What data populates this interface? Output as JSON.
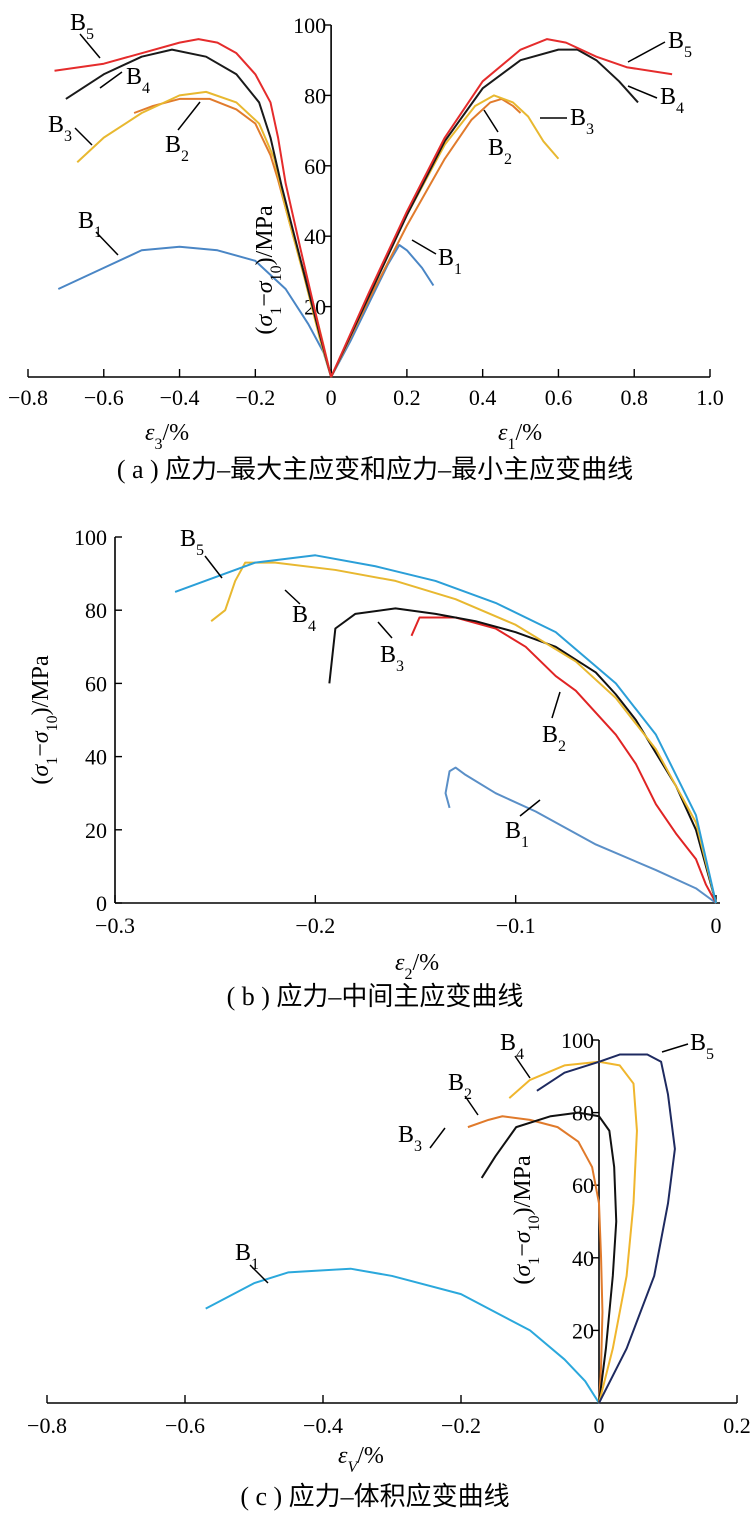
{
  "chart_data": [
    {
      "panel": "a",
      "type": "line",
      "caption": "( a ) 应力–最大主应变和应力–最小主应变曲线",
      "xlim": [
        -0.8,
        1.0
      ],
      "ylim": [
        0,
        100
      ],
      "xticks": [
        -0.8,
        -0.6,
        -0.4,
        -0.2,
        0,
        0.2,
        0.4,
        0.6,
        0.8,
        1.0
      ],
      "xtick_labels": [
        "−0.8",
        "−0.6",
        "−0.4",
        "−0.2",
        "0",
        "0.2",
        "0.4",
        "0.6",
        "0.8",
        "1.0"
      ],
      "yticks": [
        20,
        40,
        60,
        80,
        100
      ],
      "ytick_labels": [
        "20",
        "40",
        "60",
        "80",
        "100"
      ],
      "ylabel": "(σ1−σ10)/MPa",
      "xlabel_left": "ε3/%",
      "xlabel_right": "ε1/%",
      "series": [
        {
          "name": "B1",
          "color": "#4a86c5",
          "eps3": [
            [
              0,
              0
            ],
            [
              -0.02,
              7
            ],
            [
              -0.06,
              15
            ],
            [
              -0.12,
              25
            ],
            [
              -0.2,
              33
            ],
            [
              -0.3,
              36
            ],
            [
              -0.4,
              37
            ],
            [
              -0.5,
              36
            ],
            [
              -0.6,
              31
            ],
            [
              -0.72,
              25
            ]
          ],
          "eps1": [
            [
              0,
              0
            ],
            [
              0.05,
              10
            ],
            [
              0.1,
              21
            ],
            [
              0.15,
              32
            ],
            [
              0.18,
              37.5
            ],
            [
              0.2,
              36
            ],
            [
              0.24,
              31
            ],
            [
              0.27,
              26
            ]
          ]
        },
        {
          "name": "B2",
          "color": "#e17b2c",
          "eps3": [
            [
              0,
              0
            ],
            [
              -0.02,
              9
            ],
            [
              -0.05,
              22
            ],
            [
              -0.1,
              40
            ],
            [
              -0.14,
              56
            ],
            [
              -0.16,
              63
            ],
            [
              -0.2,
              72
            ],
            [
              -0.25,
              76
            ],
            [
              -0.32,
              79
            ],
            [
              -0.4,
              79
            ],
            [
              -0.47,
              77
            ],
            [
              -0.52,
              75
            ]
          ],
          "eps1": [
            [
              0,
              0
            ],
            [
              0.1,
              22
            ],
            [
              0.2,
              43
            ],
            [
              0.3,
              62
            ],
            [
              0.37,
              73
            ],
            [
              0.42,
              78
            ],
            [
              0.45,
              79
            ],
            [
              0.48,
              77
            ],
            [
              0.5,
              75
            ]
          ]
        },
        {
          "name": "B3",
          "color": "#e8b830",
          "eps3": [
            [
              0,
              0
            ],
            [
              -0.03,
              11
            ],
            [
              -0.07,
              28
            ],
            [
              -0.12,
              48
            ],
            [
              -0.15,
              62
            ],
            [
              -0.19,
              72
            ],
            [
              -0.25,
              78
            ],
            [
              -0.33,
              81
            ],
            [
              -0.4,
              80
            ],
            [
              -0.5,
              75
            ],
            [
              -0.6,
              68
            ],
            [
              -0.67,
              61
            ]
          ],
          "eps1": [
            [
              0,
              0
            ],
            [
              0.1,
              23
            ],
            [
              0.2,
              46
            ],
            [
              0.3,
              66
            ],
            [
              0.38,
              77
            ],
            [
              0.43,
              80
            ],
            [
              0.48,
              78
            ],
            [
              0.52,
              74
            ],
            [
              0.56,
              67
            ],
            [
              0.6,
              62
            ]
          ]
        },
        {
          "name": "B4",
          "color": "#1a1a1a",
          "eps3": [
            [
              0,
              0
            ],
            [
              -0.03,
              12
            ],
            [
              -0.08,
              33
            ],
            [
              -0.13,
              54
            ],
            [
              -0.16,
              68
            ],
            [
              -0.19,
              78
            ],
            [
              -0.25,
              86
            ],
            [
              -0.33,
              91
            ],
            [
              -0.42,
              93
            ],
            [
              -0.5,
              91
            ],
            [
              -0.6,
              86
            ],
            [
              -0.7,
              79
            ]
          ],
          "eps1": [
            [
              0,
              0
            ],
            [
              0.1,
              23
            ],
            [
              0.2,
              46
            ],
            [
              0.3,
              67
            ],
            [
              0.4,
              82
            ],
            [
              0.5,
              90
            ],
            [
              0.6,
              93
            ],
            [
              0.65,
              93
            ],
            [
              0.7,
              90
            ],
            [
              0.76,
              84
            ],
            [
              0.81,
              78
            ]
          ]
        },
        {
          "name": "B5",
          "color": "#e52c2c",
          "eps3": [
            [
              0,
              0
            ],
            [
              -0.03,
              13
            ],
            [
              -0.08,
              36
            ],
            [
              -0.12,
              55
            ],
            [
              -0.14,
              68
            ],
            [
              -0.16,
              78
            ],
            [
              -0.2,
              86
            ],
            [
              -0.25,
              92
            ],
            [
              -0.3,
              95
            ],
            [
              -0.35,
              96
            ],
            [
              -0.4,
              95
            ],
            [
              -0.5,
              92
            ],
            [
              -0.6,
              89
            ],
            [
              -0.73,
              87
            ]
          ],
          "eps1": [
            [
              0,
              0
            ],
            [
              0.1,
              24
            ],
            [
              0.2,
              47
            ],
            [
              0.3,
              68
            ],
            [
              0.4,
              84
            ],
            [
              0.5,
              93
            ],
            [
              0.57,
              96
            ],
            [
              0.62,
              95
            ],
            [
              0.7,
              91
            ],
            [
              0.78,
              88
            ],
            [
              0.9,
              86
            ]
          ]
        }
      ]
    },
    {
      "panel": "b",
      "type": "line",
      "caption": "( b ) 应力–中间主应变曲线",
      "xlim": [
        -0.3,
        0
      ],
      "ylim": [
        0,
        100
      ],
      "xticks": [
        -0.3,
        -0.2,
        -0.1,
        0
      ],
      "xtick_labels": [
        "−0.3",
        "−0.2",
        "−0.1",
        "0"
      ],
      "yticks": [
        0,
        20,
        40,
        60,
        80,
        100
      ],
      "ytick_labels": [
        "0",
        "20",
        "40",
        "60",
        "80",
        "100"
      ],
      "ylabel": "(σ1−σ10)/MPa",
      "xlabel": "ε2/%",
      "series": [
        {
          "name": "B1",
          "color": "#5a8fc7",
          "points": [
            [
              0,
              0
            ],
            [
              -0.01,
              4
            ],
            [
              -0.03,
              9
            ],
            [
              -0.06,
              16
            ],
            [
              -0.09,
              25
            ],
            [
              -0.11,
              30
            ],
            [
              -0.125,
              35
            ],
            [
              -0.13,
              37
            ],
            [
              -0.133,
              36
            ],
            [
              -0.135,
              30
            ],
            [
              -0.133,
              26
            ]
          ]
        },
        {
          "name": "B2",
          "color": "#e02424",
          "points": [
            [
              0,
              0
            ],
            [
              -0.005,
              5
            ],
            [
              -0.01,
              12
            ],
            [
              -0.02,
              19
            ],
            [
              -0.03,
              27
            ],
            [
              -0.04,
              38
            ],
            [
              -0.05,
              46
            ],
            [
              -0.06,
              52
            ],
            [
              -0.07,
              58
            ],
            [
              -0.08,
              62
            ],
            [
              -0.095,
              70
            ],
            [
              -0.11,
              75
            ],
            [
              -0.13,
              78
            ],
            [
              -0.148,
              78
            ],
            [
              -0.152,
              73
            ]
          ]
        },
        {
          "name": "B3",
          "color": "#111111",
          "points": [
            [
              0,
              0
            ],
            [
              -0.005,
              10
            ],
            [
              -0.01,
              20
            ],
            [
              -0.02,
              32
            ],
            [
              -0.03,
              41
            ],
            [
              -0.04,
              50
            ],
            [
              -0.05,
              57
            ],
            [
              -0.06,
              63
            ],
            [
              -0.08,
              70
            ],
            [
              -0.1,
              74
            ],
            [
              -0.12,
              77
            ],
            [
              -0.14,
              79
            ],
            [
              -0.16,
              80.5
            ],
            [
              -0.18,
              79
            ],
            [
              -0.19,
              75
            ],
            [
              -0.193,
              60
            ]
          ]
        },
        {
          "name": "B4",
          "color": "#e8b830",
          "points": [
            [
              0,
              0
            ],
            [
              -0.01,
              22
            ],
            [
              -0.03,
              42
            ],
            [
              -0.05,
              56
            ],
            [
              -0.07,
              66
            ],
            [
              -0.1,
              76
            ],
            [
              -0.13,
              83
            ],
            [
              -0.16,
              88
            ],
            [
              -0.19,
              91
            ],
            [
              -0.22,
              93
            ],
            [
              -0.235,
              93
            ],
            [
              -0.24,
              88
            ],
            [
              -0.245,
              80
            ],
            [
              -0.252,
              77
            ]
          ]
        },
        {
          "name": "B5",
          "color": "#2b9fd8",
          "points": [
            [
              0,
              0
            ],
            [
              -0.01,
              24
            ],
            [
              -0.03,
              46
            ],
            [
              -0.05,
              60
            ],
            [
              -0.08,
              74
            ],
            [
              -0.11,
              82
            ],
            [
              -0.14,
              88
            ],
            [
              -0.17,
              92
            ],
            [
              -0.2,
              95
            ],
            [
              -0.23,
              93
            ],
            [
              -0.245,
              90
            ],
            [
              -0.27,
              85
            ]
          ]
        }
      ]
    },
    {
      "panel": "c",
      "type": "line",
      "caption": "( c ) 应力–体积应变曲线",
      "xlim": [
        -0.8,
        0.2
      ],
      "ylim": [
        0,
        100
      ],
      "xticks": [
        -0.8,
        -0.6,
        -0.4,
        -0.2,
        0,
        0.2
      ],
      "xtick_labels": [
        "−0.8",
        "−0.6",
        "−0.4",
        "−0.2",
        "0",
        "0.2"
      ],
      "yticks": [
        20,
        40,
        60,
        80,
        100
      ],
      "ytick_labels": [
        "20",
        "40",
        "60",
        "80",
        "100"
      ],
      "ylabel": "(σ1−σ10)/MPa",
      "xlabel": "εV/%",
      "series": [
        {
          "name": "B1",
          "color": "#2ba8dc",
          "points": [
            [
              0,
              0
            ],
            [
              -0.02,
              6
            ],
            [
              -0.05,
              12
            ],
            [
              -0.1,
              20
            ],
            [
              -0.2,
              30
            ],
            [
              -0.3,
              35
            ],
            [
              -0.36,
              37
            ],
            [
              -0.45,
              36
            ],
            [
              -0.5,
              33
            ],
            [
              -0.57,
              26
            ]
          ]
        },
        {
          "name": "B2",
          "color": "#e07a2b",
          "points": [
            [
              0,
              0
            ],
            [
              0.003,
              10
            ],
            [
              0.005,
              25
            ],
            [
              0.003,
              40
            ],
            [
              0,
              55
            ],
            [
              -0.01,
              65
            ],
            [
              -0.03,
              72
            ],
            [
              -0.06,
              76
            ],
            [
              -0.1,
              78
            ],
            [
              -0.14,
              79
            ],
            [
              -0.16,
              78
            ],
            [
              -0.19,
              76
            ]
          ]
        },
        {
          "name": "B3",
          "color": "#111111",
          "points": [
            [
              0,
              0
            ],
            [
              0.01,
              15
            ],
            [
              0.02,
              35
            ],
            [
              0.025,
              50
            ],
            [
              0.022,
              65
            ],
            [
              0.015,
              75
            ],
            [
              0,
              79
            ],
            [
              -0.03,
              80
            ],
            [
              -0.07,
              79
            ],
            [
              -0.12,
              76
            ],
            [
              -0.15,
              68
            ],
            [
              -0.17,
              62
            ]
          ]
        },
        {
          "name": "B4",
          "color": "#f0b62d",
          "points": [
            [
              0,
              0
            ],
            [
              0.02,
              15
            ],
            [
              0.04,
              35
            ],
            [
              0.05,
              55
            ],
            [
              0.055,
              75
            ],
            [
              0.05,
              88
            ],
            [
              0.03,
              93
            ],
            [
              0,
              94
            ],
            [
              -0.05,
              93
            ],
            [
              -0.1,
              89
            ],
            [
              -0.13,
              84
            ]
          ]
        },
        {
          "name": "B5",
          "color": "#1e2a60",
          "points": [
            [
              0,
              0
            ],
            [
              0.04,
              15
            ],
            [
              0.08,
              35
            ],
            [
              0.1,
              55
            ],
            [
              0.11,
              70
            ],
            [
              0.1,
              85
            ],
            [
              0.09,
              94
            ],
            [
              0.07,
              96
            ],
            [
              0.03,
              96
            ],
            [
              0,
              94
            ],
            [
              -0.05,
              91
            ],
            [
              -0.09,
              86
            ]
          ]
        }
      ]
    }
  ]
}
